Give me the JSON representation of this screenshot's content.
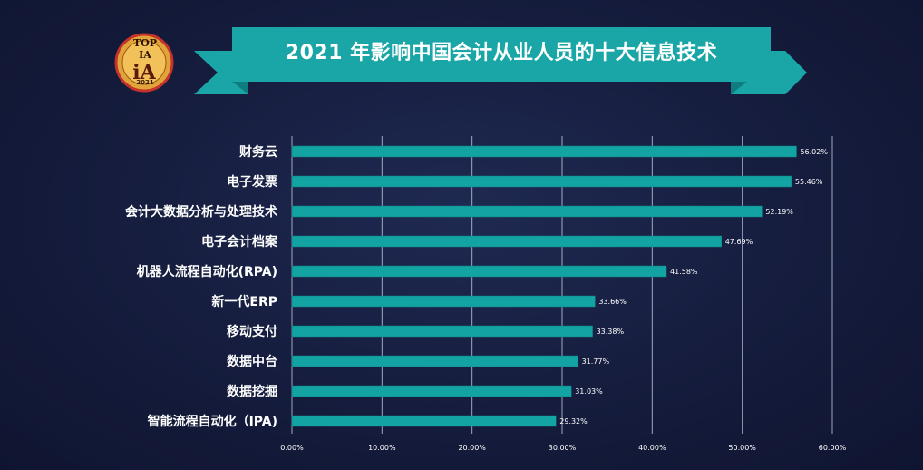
{
  "logo": {
    "text": "TOP IA",
    "year": "2021"
  },
  "colors": {
    "bar": "#14a3a3",
    "bar_edge": "#0d7f80",
    "banner": "#1aa6a6",
    "banner_dark": "#0f7d7f",
    "grid": "#cfd6ea",
    "background": "#151c3d"
  },
  "chart_data": {
    "type": "bar",
    "orientation": "horizontal",
    "title": "2021 年影响中国会计从业人员的十大信息技术",
    "categories": [
      "财务云",
      "电子发票",
      "会计大数据分析与处理技术",
      "电子会计档案",
      "机器人流程自动化(RPA)",
      "新一代ERP",
      "移动支付",
      "数据中台",
      "数据挖掘",
      "智能流程自动化（IPA)"
    ],
    "values": [
      56.02,
      55.46,
      52.19,
      47.69,
      41.58,
      33.66,
      33.38,
      31.77,
      31.03,
      29.32
    ],
    "value_labels": [
      "56.02%",
      "55.46%",
      "52.19%",
      "47.69%",
      "41.58%",
      "33.66%",
      "33.38%",
      "31.77%",
      "31.03%",
      "29.32%"
    ],
    "xlim": [
      0,
      60
    ],
    "xticks": [
      0,
      10,
      20,
      30,
      40,
      50,
      60
    ],
    "xtick_labels": [
      "0.00%",
      "10.00%",
      "20.00%",
      "30.00%",
      "40.00%",
      "50.00%",
      "60.00%"
    ],
    "grid": true,
    "xlabel": "",
    "ylabel": ""
  }
}
